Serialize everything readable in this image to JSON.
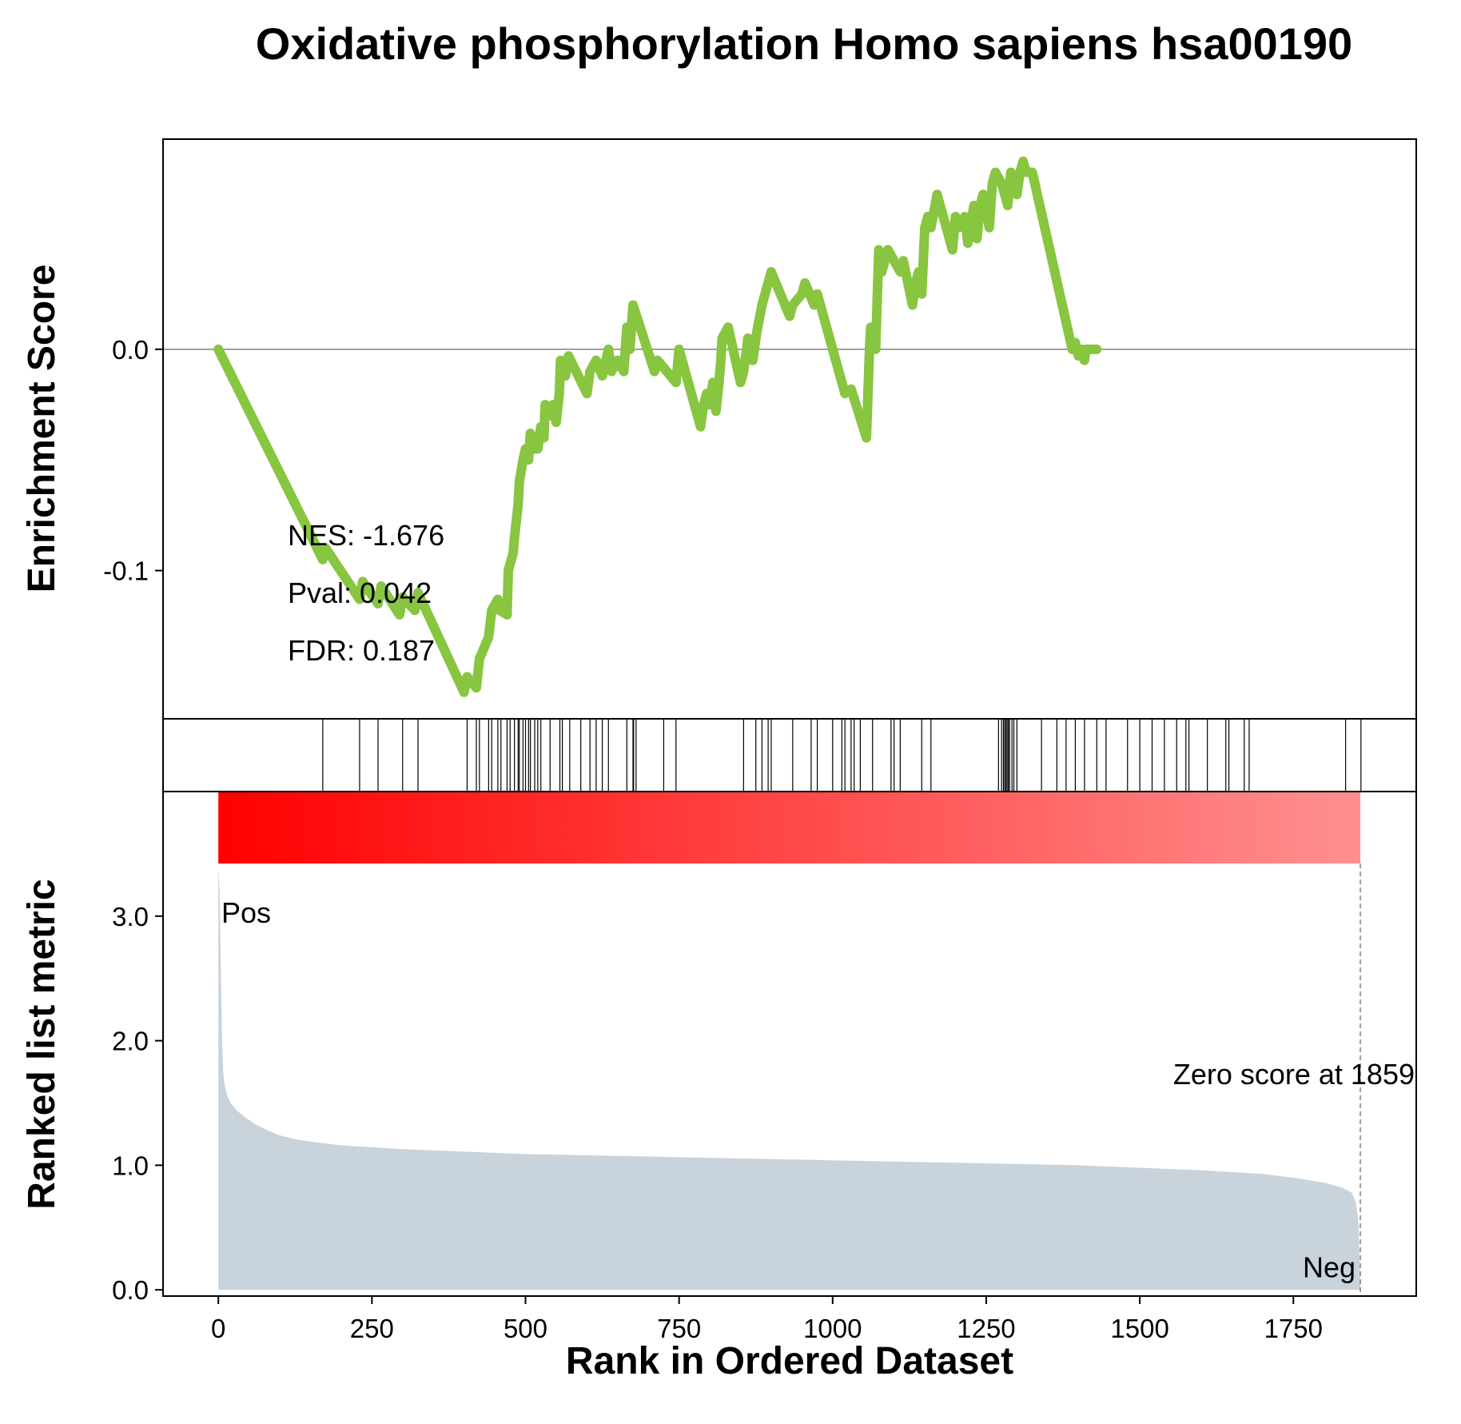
{
  "chart_data": {
    "type": "line",
    "title": "Oxidative phosphorylation Homo sapiens hsa00190",
    "xlabel": "Rank in Ordered Dataset",
    "xlim": [
      -90,
      1950
    ],
    "x_ticks": [
      0,
      250,
      500,
      750,
      1000,
      1250,
      1500,
      1750
    ],
    "x_tick_labels": [
      "0",
      "250",
      "500",
      "750",
      "1000",
      "1250",
      "1500",
      "1750"
    ],
    "enrichment": {
      "ylabel": "Enrichment Score",
      "ylim": [
        -0.167,
        0.095
      ],
      "y_ticks": [
        -0.1,
        0.0
      ],
      "y_tick_labels": [
        "-0.1",
        "0.0"
      ],
      "zero_line": true,
      "color": "#88c540",
      "points": [
        [
          0,
          0.0
        ],
        [
          170,
          -0.095
        ],
        [
          175,
          -0.09
        ],
        [
          230,
          -0.113
        ],
        [
          235,
          -0.105
        ],
        [
          260,
          -0.115
        ],
        [
          265,
          -0.107
        ],
        [
          295,
          -0.12
        ],
        [
          300,
          -0.112
        ],
        [
          320,
          -0.118
        ],
        [
          325,
          -0.11
        ],
        [
          400,
          -0.155
        ],
        [
          405,
          -0.148
        ],
        [
          420,
          -0.153
        ],
        [
          425,
          -0.14
        ],
        [
          440,
          -0.13
        ],
        [
          445,
          -0.118
        ],
        [
          455,
          -0.113
        ],
        [
          458,
          -0.118
        ],
        [
          470,
          -0.12
        ],
        [
          472,
          -0.1
        ],
        [
          480,
          -0.092
        ],
        [
          482,
          -0.085
        ],
        [
          488,
          -0.07
        ],
        [
          490,
          -0.06
        ],
        [
          496,
          -0.05
        ],
        [
          500,
          -0.045
        ],
        [
          505,
          -0.05
        ],
        [
          508,
          -0.038
        ],
        [
          515,
          -0.045
        ],
        [
          520,
          -0.045
        ],
        [
          525,
          -0.035
        ],
        [
          530,
          -0.04
        ],
        [
          532,
          -0.025
        ],
        [
          540,
          -0.03
        ],
        [
          545,
          -0.025
        ],
        [
          550,
          -0.033
        ],
        [
          555,
          -0.02
        ],
        [
          557,
          -0.005
        ],
        [
          565,
          -0.012
        ],
        [
          570,
          -0.003
        ],
        [
          600,
          -0.02
        ],
        [
          605,
          -0.01
        ],
        [
          615,
          -0.005
        ],
        [
          625,
          -0.012
        ],
        [
          635,
          0.0
        ],
        [
          640,
          -0.01
        ],
        [
          650,
          -0.005
        ],
        [
          660,
          -0.01
        ],
        [
          665,
          0.01
        ],
        [
          670,
          0.0
        ],
        [
          675,
          0.02
        ],
        [
          710,
          -0.01
        ],
        [
          715,
          -0.005
        ],
        [
          745,
          -0.015
        ],
        [
          750,
          0.0
        ],
        [
          785,
          -0.035
        ],
        [
          790,
          -0.025
        ],
        [
          795,
          -0.02
        ],
        [
          800,
          -0.025
        ],
        [
          805,
          -0.015
        ],
        [
          810,
          -0.028
        ],
        [
          815,
          -0.015
        ],
        [
          818,
          -0.005
        ],
        [
          820,
          0.005
        ],
        [
          830,
          0.01
        ],
        [
          850,
          -0.015
        ],
        [
          855,
          -0.01
        ],
        [
          860,
          0.0
        ],
        [
          862,
          0.005
        ],
        [
          870,
          -0.005
        ],
        [
          875,
          0.005
        ],
        [
          878,
          0.01
        ],
        [
          885,
          0.02
        ],
        [
          900,
          0.035
        ],
        [
          930,
          0.015
        ],
        [
          935,
          0.02
        ],
        [
          950,
          0.025
        ],
        [
          955,
          0.03
        ],
        [
          970,
          0.02
        ],
        [
          975,
          0.025
        ],
        [
          1020,
          -0.02
        ],
        [
          1030,
          -0.018
        ],
        [
          1055,
          -0.04
        ],
        [
          1060,
          0.0
        ],
        [
          1062,
          0.01
        ],
        [
          1070,
          0.0
        ],
        [
          1075,
          0.045
        ],
        [
          1080,
          0.035
        ],
        [
          1085,
          0.04
        ],
        [
          1090,
          0.045
        ],
        [
          1100,
          0.04
        ],
        [
          1110,
          0.035
        ],
        [
          1115,
          0.04
        ],
        [
          1130,
          0.02
        ],
        [
          1135,
          0.03
        ],
        [
          1140,
          0.035
        ],
        [
          1145,
          0.025
        ],
        [
          1150,
          0.055
        ],
        [
          1155,
          0.06
        ],
        [
          1160,
          0.055
        ],
        [
          1170,
          0.07
        ],
        [
          1195,
          0.045
        ],
        [
          1200,
          0.06
        ],
        [
          1205,
          0.055
        ],
        [
          1215,
          0.06
        ],
        [
          1220,
          0.048
        ],
        [
          1230,
          0.065
        ],
        [
          1235,
          0.05
        ],
        [
          1240,
          0.065
        ],
        [
          1245,
          0.07
        ],
        [
          1255,
          0.055
        ],
        [
          1260,
          0.075
        ],
        [
          1265,
          0.08
        ],
        [
          1275,
          0.075
        ],
        [
          1285,
          0.065
        ],
        [
          1290,
          0.08
        ],
        [
          1295,
          0.075
        ],
        [
          1300,
          0.07
        ],
        [
          1305,
          0.08
        ],
        [
          1310,
          0.085
        ],
        [
          1315,
          0.08
        ],
        [
          1325,
          0.08
        ],
        [
          1390,
          0.0
        ],
        [
          1395,
          0.003
        ],
        [
          1400,
          -0.003
        ],
        [
          1405,
          0.0
        ],
        [
          1410,
          -0.005
        ],
        [
          1412,
          0.0
        ],
        [
          1430,
          0.0
        ]
      ]
    },
    "hits": {
      "positions": [
        170,
        230,
        260,
        300,
        325,
        405,
        420,
        425,
        440,
        445,
        455,
        460,
        470,
        475,
        482,
        488,
        490,
        496,
        500,
        505,
        508,
        515,
        520,
        525,
        540,
        556,
        560,
        572,
        590,
        605,
        615,
        625,
        635,
        665,
        675,
        676,
        680,
        725,
        745,
        855,
        875,
        885,
        895,
        900,
        935,
        965,
        975,
        1000,
        1015,
        1020,
        1030,
        1035,
        1045,
        1065,
        1095,
        1100,
        1110,
        1145,
        1160,
        1270,
        1275,
        1278,
        1280,
        1282,
        1284,
        1286,
        1288,
        1292,
        1295,
        1300,
        1340,
        1365,
        1380,
        1395,
        1410,
        1430,
        1445,
        1480,
        1500,
        1520,
        1540,
        1560,
        1575,
        1580,
        1610,
        1640,
        1645,
        1670,
        1678,
        1835,
        1860
      ]
    },
    "metric": {
      "ylabel": "Ranked list metric",
      "ylim": [
        -0.05,
        4.0
      ],
      "y_ticks": [
        0.0,
        1.0,
        2.0,
        3.0
      ],
      "y_tick_labels": [
        "0.0",
        "1.0",
        "2.0",
        "3.0"
      ],
      "fill_color": "#c9d3dc",
      "points": [
        [
          0,
          3.4
        ],
        [
          2,
          3.2
        ],
        [
          4,
          2.6
        ],
        [
          6,
          2.0
        ],
        [
          8,
          1.75
        ],
        [
          10,
          1.65
        ],
        [
          15,
          1.55
        ],
        [
          20,
          1.5
        ],
        [
          30,
          1.44
        ],
        [
          45,
          1.38
        ],
        [
          60,
          1.33
        ],
        [
          80,
          1.28
        ],
        [
          100,
          1.24
        ],
        [
          125,
          1.21
        ],
        [
          150,
          1.19
        ],
        [
          200,
          1.16
        ],
        [
          300,
          1.13
        ],
        [
          400,
          1.11
        ],
        [
          500,
          1.09
        ],
        [
          600,
          1.08
        ],
        [
          700,
          1.07
        ],
        [
          800,
          1.06
        ],
        [
          900,
          1.05
        ],
        [
          1000,
          1.04
        ],
        [
          1100,
          1.03
        ],
        [
          1200,
          1.02
        ],
        [
          1300,
          1.01
        ],
        [
          1400,
          1.0
        ],
        [
          1500,
          0.98
        ],
        [
          1600,
          0.96
        ],
        [
          1700,
          0.93
        ],
        [
          1750,
          0.9
        ],
        [
          1800,
          0.86
        ],
        [
          1830,
          0.82
        ],
        [
          1845,
          0.78
        ],
        [
          1852,
          0.7
        ],
        [
          1856,
          0.55
        ],
        [
          1859,
          0.0
        ]
      ],
      "zero_score_rank": 1859,
      "pos_label": "Pos",
      "neg_label": "Neg",
      "pos_color": "#ff0000",
      "neg_color": "#0000ff",
      "gradient_from": "#ff0000",
      "gradient_to": "#ff9090"
    },
    "annotations": {
      "nes": "NES: -1.676",
      "pval": "Pval: 0.042",
      "fdr": "FDR: 0.187",
      "zero_score": "Zero score at 1859"
    }
  }
}
